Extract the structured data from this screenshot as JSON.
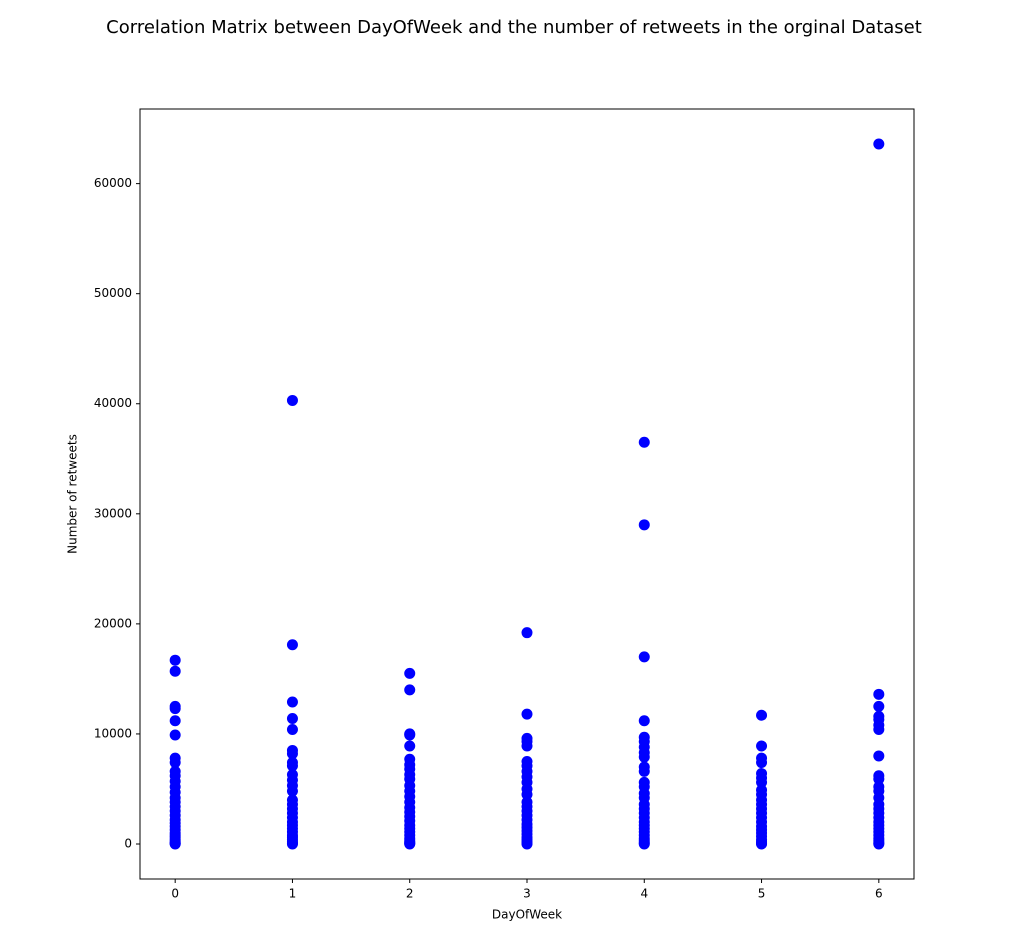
{
  "chart_data": {
    "type": "scatter",
    "title": "Correlation Matrix between DayOfWeek and the number of retweets in the orginal Dataset",
    "x_label": "DayOfWeek",
    "y_label": "Number of retweets",
    "color": "#0000ff",
    "xlim": [
      -0.3,
      6.3
    ],
    "xticks": [
      0,
      1,
      2,
      3,
      4,
      5,
      6
    ],
    "ylim": [
      -3180,
      66780
    ],
    "yticks": [
      0,
      10000,
      20000,
      30000,
      40000,
      50000,
      60000
    ],
    "x": [
      0,
      0,
      0,
      0,
      0,
      0,
      0,
      0,
      0,
      0,
      0,
      0,
      0,
      0,
      0,
      0,
      0,
      0,
      0,
      0,
      0,
      0,
      0,
      0,
      0,
      0,
      0,
      0,
      0,
      0,
      1,
      1,
      1,
      1,
      1,
      1,
      1,
      1,
      1,
      1,
      1,
      1,
      1,
      1,
      1,
      1,
      1,
      1,
      1,
      1,
      1,
      1,
      1,
      1,
      1,
      1,
      1,
      1,
      2,
      2,
      2,
      2,
      2,
      2,
      2,
      2,
      2,
      2,
      2,
      2,
      2,
      2,
      2,
      2,
      2,
      2,
      2,
      2,
      2,
      2,
      2,
      2,
      2,
      2,
      2,
      3,
      3,
      3,
      3,
      3,
      3,
      3,
      3,
      3,
      3,
      3,
      3,
      3,
      3,
      3,
      3,
      3,
      3,
      3,
      3,
      3,
      3,
      3,
      3,
      3,
      3,
      4,
      4,
      4,
      4,
      4,
      4,
      4,
      4,
      4,
      4,
      4,
      4,
      4,
      4,
      4,
      4,
      4,
      4,
      4,
      4,
      4,
      4,
      4,
      4,
      4,
      4,
      4,
      4,
      5,
      5,
      5,
      5,
      5,
      5,
      5,
      5,
      5,
      5,
      5,
      5,
      5,
      5,
      5,
      5,
      5,
      5,
      5,
      5,
      5,
      5,
      5,
      6,
      6,
      6,
      6,
      6,
      6,
      6,
      6,
      6,
      6,
      6,
      6,
      6,
      6,
      6,
      6,
      6,
      6,
      6,
      6,
      6,
      6,
      6,
      6,
      6,
      6
    ],
    "values": [
      16700,
      15700,
      12500,
      12300,
      11200,
      9900,
      7800,
      7400,
      6600,
      6200,
      5700,
      5200,
      4700,
      4200,
      3800,
      3400,
      3000,
      2600,
      2200,
      1900,
      1600,
      1300,
      1000,
      800,
      600,
      400,
      250,
      100,
      30,
      0,
      40300,
      18100,
      12900,
      11400,
      10400,
      8500,
      8200,
      7400,
      7100,
      6300,
      5800,
      5300,
      4800,
      4000,
      3600,
      3200,
      2800,
      2400,
      2000,
      1700,
      1400,
      1100,
      800,
      600,
      400,
      200,
      80,
      0,
      15500,
      14000,
      10000,
      9900,
      8900,
      7700,
      7200,
      6800,
      6300,
      5900,
      5300,
      4800,
      4300,
      3800,
      3300,
      2900,
      2500,
      2100,
      1700,
      1400,
      1100,
      800,
      500,
      300,
      150,
      50,
      0,
      19200,
      11800,
      9600,
      9300,
      8900,
      7500,
      7100,
      6600,
      6100,
      5600,
      5000,
      4500,
      3800,
      3400,
      3000,
      2600,
      2200,
      1800,
      1500,
      1200,
      900,
      600,
      400,
      200,
      80,
      0,
      36500,
      29000,
      17000,
      11200,
      9700,
      9300,
      8800,
      8300,
      7900,
      7000,
      6600,
      5600,
      5200,
      4600,
      4200,
      3600,
      3200,
      2800,
      2400,
      2000,
      1700,
      1400,
      1100,
      800,
      500,
      300,
      100,
      0,
      11700,
      8900,
      7800,
      7400,
      6400,
      6000,
      5600,
      4900,
      4500,
      4000,
      3600,
      3200,
      2800,
      2400,
      2000,
      1600,
      1300,
      1000,
      700,
      400,
      200,
      50,
      0,
      63600,
      13600,
      12500,
      11600,
      11300,
      10800,
      10400,
      8000,
      6200,
      5900,
      5200,
      4800,
      4200,
      3600,
      3200,
      2800,
      2400,
      2000,
      1700,
      1400,
      1100,
      800,
      500,
      300,
      100,
      0
    ]
  }
}
